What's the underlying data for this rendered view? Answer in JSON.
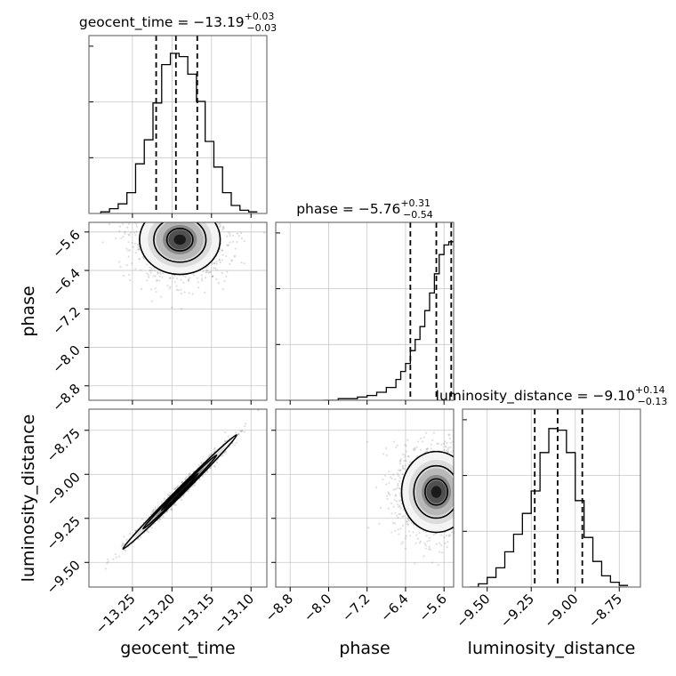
{
  "chart_data": {
    "type": "corner",
    "parameters": [
      {
        "name": "geocent_time",
        "label": "geocent_time",
        "median": -13.19,
        "plus": 0.03,
        "minus": 0.03,
        "title_main": "geocent_time = −13.19",
        "title_sup": "+0.03",
        "title_sub": "−0.03",
        "range": [
          -13.305,
          -13.08
        ],
        "ticks": [
          -13.25,
          -13.2,
          -13.15,
          -13.1
        ],
        "tick_labels": [
          "−13.25",
          "−13.20",
          "−13.15",
          "−13.10"
        ],
        "quantiles": [
          -13.22,
          -13.195,
          -13.168
        ],
        "hist_edges": [
          -13.29,
          -13.279,
          -13.268,
          -13.257,
          -13.246,
          -13.235,
          -13.224,
          -13.213,
          -13.202,
          -13.191,
          -13.18,
          -13.169,
          -13.158,
          -13.147,
          -13.136,
          -13.125,
          -13.114,
          -13.103,
          -13.092
        ],
        "hist_counts": [
          0.01,
          0.03,
          0.06,
          0.13,
          0.31,
          0.46,
          0.69,
          0.93,
          1.0,
          0.98,
          0.87,
          0.7,
          0.45,
          0.29,
          0.13,
          0.05,
          0.02,
          0.01
        ]
      },
      {
        "name": "phase",
        "label": "phase",
        "median": -5.76,
        "plus": 0.31,
        "minus": 0.54,
        "title_main": "phase = −5.76",
        "title_sup": "+0.31",
        "title_sub": "−0.54",
        "range": [
          -9.1,
          -5.4
        ],
        "ticks": [
          -8.8,
          -8.0,
          -7.2,
          -6.4,
          -5.6
        ],
        "tick_labels": [
          "−8.8",
          "−8.0",
          "−7.2",
          "−6.4",
          "−5.6"
        ],
        "quantiles": [
          -6.3,
          -5.76,
          -5.45
        ],
        "hist_edges": [
          -8.1,
          -7.8,
          -7.6,
          -7.4,
          -7.2,
          -7.0,
          -6.8,
          -6.6,
          -6.5,
          -6.4,
          -6.3,
          -6.2,
          -6.1,
          -6.0,
          -5.9,
          -5.8,
          -5.7,
          -5.6,
          -5.5,
          -5.4
        ],
        "hist_counts": [
          0.0,
          0.01,
          0.01,
          0.02,
          0.03,
          0.05,
          0.08,
          0.13,
          0.18,
          0.23,
          0.31,
          0.38,
          0.46,
          0.56,
          0.67,
          0.79,
          0.91,
          0.97,
          0.99
        ]
      },
      {
        "name": "luminosity_distance",
        "label": "luminosity_distance",
        "median": -9.1,
        "plus": 0.14,
        "minus": 0.13,
        "title_main": "luminosity_distance = −9.10",
        "title_sup": "+0.14",
        "title_sub": "−0.13",
        "range": [
          -9.64,
          -8.63
        ],
        "ticks": [
          -9.5,
          -9.25,
          -9.0,
          -8.75
        ],
        "tick_labels": [
          "−9.50",
          "−9.25",
          "−9.00",
          "−8.75"
        ],
        "quantiles": [
          -9.23,
          -9.1,
          -8.96
        ],
        "hist_edges": [
          -9.6,
          -9.55,
          -9.5,
          -9.45,
          -9.4,
          -9.35,
          -9.3,
          -9.25,
          -9.2,
          -9.15,
          -9.1,
          -9.05,
          -9.0,
          -8.95,
          -8.9,
          -8.85,
          -8.8,
          -8.75,
          -8.7
        ],
        "hist_counts": [
          0.0,
          0.02,
          0.06,
          0.12,
          0.22,
          0.33,
          0.46,
          0.6,
          0.84,
          0.99,
          0.98,
          0.84,
          0.54,
          0.31,
          0.16,
          0.07,
          0.03,
          0.01
        ]
      }
    ],
    "correlations": {
      "phase_vs_geocent_time": 0.0,
      "luminosity_distance_vs_geocent_time": 0.99,
      "luminosity_distance_vs_phase": 0.0
    },
    "contour_levels": [
      "0.5-sigma",
      "1-sigma",
      "1.5-sigma"
    ],
    "grid": true,
    "quantile_lines": "dashed",
    "colors": {
      "lines": "#000000",
      "grid": "#c8c8c8",
      "frame": "#555555",
      "points": "#888888"
    }
  }
}
